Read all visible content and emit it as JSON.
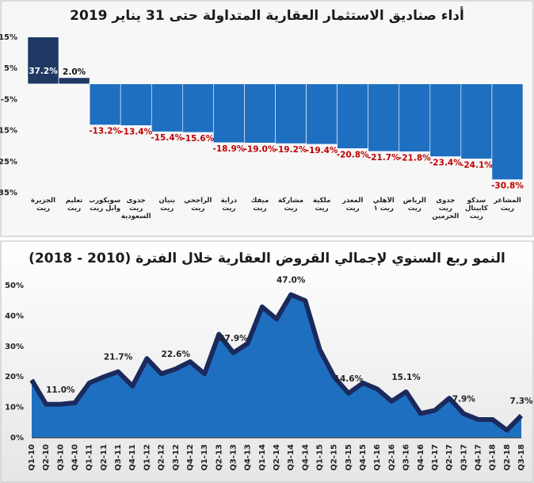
{
  "chart_data": [
    {
      "type": "bar",
      "title": "أداء صناديق الاستثمار العقارية المتداولة حتى 31 يناير 2019",
      "categories": [
        "الجزيرة ريت",
        "تعليم ريت",
        "سويكورب وابل ريت",
        "جدوى ريت السعودية",
        "بنيان ريت",
        "الراجحي ريت",
        "دراية ريت",
        "ميفك ريت",
        "مشاركة ريت",
        "ملكية ريت",
        "المعذر ريت",
        "الأهلي ريت ١",
        "الرياض ريت",
        "جدوى ريت الحرمين",
        "سدكو كابيتال ريت",
        "المشاعر ريت"
      ],
      "values": [
        37.2,
        2.0,
        -13.2,
        -13.4,
        -15.4,
        -15.6,
        -18.9,
        -19.0,
        -19.2,
        -19.4,
        -20.8,
        -21.7,
        -21.8,
        -23.4,
        -24.1,
        -30.8
      ],
      "value_labels": [
        "37.2%",
        "2.0%",
        "-13.2%",
        "-13.4%",
        "-15.4%",
        "-15.6%",
        "-18.9%",
        "-19.0%",
        "-19.2%",
        "-19.4%",
        "-20.8%",
        "-21.7%",
        "-21.8%",
        "-23.4%",
        "-24.1%",
        "-30.8%"
      ],
      "colors": [
        "#1f3864",
        "#1f3864",
        "#1f6fc1",
        "#1f6fc1",
        "#1f6fc1",
        "#1f6fc1",
        "#1f6fc1",
        "#1f6fc1",
        "#1f6fc1",
        "#1f6fc1",
        "#1f6fc1",
        "#1f6fc1",
        "#1f6fc1",
        "#1f6fc1",
        "#1f6fc1",
        "#1f6fc1"
      ],
      "ylim": [
        -35,
        15
      ],
      "yticks": [
        {
          "value": 15,
          "label": "15%"
        },
        {
          "value": 5,
          "label": "5%"
        },
        {
          "value": -5,
          "label": "-5%"
        },
        {
          "value": -15,
          "label": "-15%"
        },
        {
          "value": -25,
          "label": "-25%"
        },
        {
          "value": -35,
          "label": "-35%"
        }
      ]
    },
    {
      "type": "area",
      "title": "النمو ربع السنوي لإجمالي القروض العقارية خلال الفترة (2010 - 2018)",
      "categories": [
        "Q1-10",
        "Q2-10",
        "Q3-10",
        "Q4-10",
        "Q1-11",
        "Q2-11",
        "Q3-11",
        "Q4-11",
        "Q1-12",
        "Q2-12",
        "Q3-12",
        "Q4-12",
        "Q1-13",
        "Q2-13",
        "Q3-13",
        "Q4-13",
        "Q1-14",
        "Q2-14",
        "Q3-14",
        "Q4-14",
        "Q1-15",
        "Q2-15",
        "Q3-15",
        "Q4-15",
        "Q1-16",
        "Q2-16",
        "Q3-16",
        "Q4-16",
        "Q1-17",
        "Q2-17",
        "Q3-17",
        "Q4-17",
        "Q1-18",
        "Q2-18",
        "Q3-18"
      ],
      "values": [
        19,
        11,
        11,
        11.5,
        18,
        20,
        21.7,
        17,
        26,
        21,
        22.6,
        25,
        21,
        34,
        27.9,
        31,
        43,
        39,
        47.0,
        45,
        29,
        20,
        14.6,
        18,
        16,
        12,
        15.1,
        8,
        9,
        13,
        7.9,
        6,
        6,
        2.5,
        7.3
      ],
      "value_labels": [
        null,
        null,
        "11.0%",
        null,
        null,
        null,
        "21.7%",
        null,
        null,
        null,
        "22.6%",
        null,
        null,
        null,
        "27.9%",
        null,
        null,
        null,
        "47.0%",
        null,
        null,
        null,
        "14.6%",
        null,
        null,
        null,
        "15.1%",
        null,
        null,
        null,
        "7.9%",
        null,
        null,
        null,
        "7.3%"
      ],
      "color": "#1f6fc1",
      "line_color": "#1b2a5c",
      "ylim": [
        0,
        50
      ],
      "yticks": [
        {
          "value": 0,
          "label": "0%"
        },
        {
          "value": 10,
          "label": "10%"
        },
        {
          "value": 20,
          "label": "20%"
        },
        {
          "value": 30,
          "label": "30%"
        },
        {
          "value": 40,
          "label": "40%"
        },
        {
          "value": 50,
          "label": "50%"
        }
      ]
    }
  ]
}
